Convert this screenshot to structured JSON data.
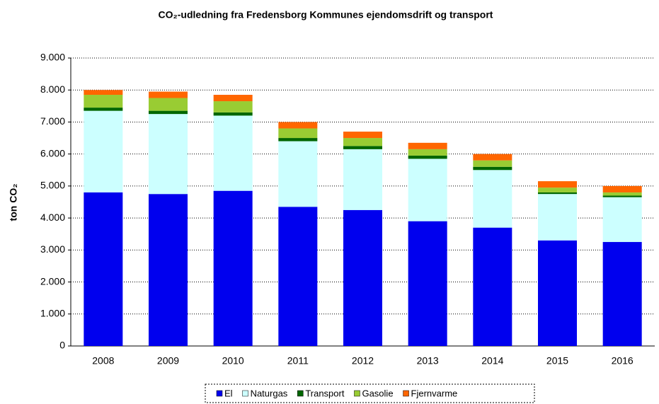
{
  "chart_data": {
    "type": "stacked-bar",
    "title": "CO₂-udledning fra Fredensborg Kommunes ejendomsdrift og transport",
    "y_label": "ton CO₂",
    "categories": [
      "2008",
      "2009",
      "2010",
      "2011",
      "2012",
      "2013",
      "2014",
      "2015",
      "2016"
    ],
    "series": [
      {
        "name": "El",
        "color": "#0000ee",
        "values": [
          4800,
          4750,
          4850,
          4350,
          4250,
          3900,
          3700,
          3300,
          3250
        ]
      },
      {
        "name": "Naturgas",
        "color": "#ccffff",
        "values": [
          2550,
          2500,
          2350,
          2050,
          1900,
          1950,
          1800,
          1450,
          1400
        ]
      },
      {
        "name": "Transport",
        "color": "#006600",
        "values": [
          100,
          100,
          100,
          100,
          100,
          100,
          100,
          50,
          50
        ]
      },
      {
        "name": "Gasolie",
        "color": "#99cc33",
        "values": [
          400,
          400,
          350,
          300,
          250,
          200,
          200,
          150,
          100
        ]
      },
      {
        "name": "Fjernvarme",
        "color": "#ff6600",
        "values": [
          150,
          200,
          200,
          200,
          200,
          200,
          200,
          200,
          200
        ]
      }
    ],
    "ylim": [
      0,
      9000
    ],
    "yticks": [
      0,
      {
        "value": 1000,
        "label": "1.000"
      },
      {
        "value": 2000,
        "label": "2.000"
      },
      {
        "value": 3000,
        "label": "3.000"
      },
      {
        "value": 4000,
        "label": "4.000"
      },
      {
        "value": 5000,
        "label": "5.000"
      },
      {
        "value": 6000,
        "label": "6.000"
      },
      {
        "value": 7000,
        "label": "7.000"
      },
      {
        "value": 8000,
        "label": "8.000"
      },
      {
        "value": 9000,
        "label": "9.000"
      }
    ],
    "grid": true
  }
}
